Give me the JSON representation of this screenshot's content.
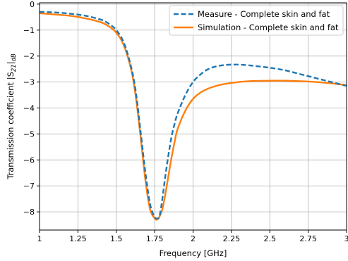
{
  "chart_data": {
    "type": "line",
    "title": "",
    "xlabel": "Frequency [GHz]",
    "ylabel": "Transmission coefficient |S",
    "ylabel_sub": "21",
    "ylabel_tail": "|",
    "ylabel_sub2": "dB",
    "xlim": [
      1,
      3
    ],
    "ylim": [
      -8.7,
      0.05
    ],
    "xticks": [
      1,
      1.25,
      1.5,
      1.75,
      2,
      2.25,
      2.5,
      2.75,
      3
    ],
    "xtick_labels": [
      "1",
      "1.25",
      "1.5",
      "1.75",
      "2",
      "2.25",
      "2.5",
      "2.75",
      "3"
    ],
    "yticks": [
      0,
      -1,
      -2,
      -3,
      -4,
      -5,
      -6,
      -7,
      -8
    ],
    "ytick_labels": [
      "0",
      "−1",
      "−2",
      "−3",
      "−4",
      "−5",
      "−6",
      "−7",
      "−8"
    ],
    "grid": true,
    "legend_position": "top-right",
    "series": [
      {
        "name": "Measure - Complete skin and fat",
        "color": "#1f77b4",
        "style": "dashed",
        "x": [
          1.0,
          1.1,
          1.2,
          1.3,
          1.4,
          1.45,
          1.5,
          1.55,
          1.6,
          1.63,
          1.66,
          1.69,
          1.72,
          1.75,
          1.77,
          1.78,
          1.79,
          1.8,
          1.82,
          1.84,
          1.86,
          1.88,
          1.9,
          1.95,
          2.0,
          2.05,
          2.1,
          2.15,
          2.2,
          2.25,
          2.3,
          2.35,
          2.4,
          2.5,
          2.6,
          2.7,
          2.8,
          2.9,
          3.0
        ],
        "y": [
          -0.3,
          -0.32,
          -0.37,
          -0.45,
          -0.6,
          -0.75,
          -1.0,
          -1.5,
          -2.5,
          -3.5,
          -5.0,
          -6.5,
          -7.7,
          -8.2,
          -8.25,
          -8.2,
          -7.9,
          -7.5,
          -6.6,
          -5.8,
          -5.1,
          -4.6,
          -4.2,
          -3.5,
          -3.0,
          -2.7,
          -2.5,
          -2.4,
          -2.35,
          -2.33,
          -2.33,
          -2.35,
          -2.38,
          -2.45,
          -2.55,
          -2.7,
          -2.85,
          -3.0,
          -3.15
        ]
      },
      {
        "name": "Simulation - Complete skin and fat",
        "color": "#ff7f0e",
        "style": "solid",
        "x": [
          1.0,
          1.1,
          1.2,
          1.3,
          1.4,
          1.45,
          1.5,
          1.55,
          1.6,
          1.63,
          1.66,
          1.69,
          1.72,
          1.75,
          1.76,
          1.77,
          1.78,
          1.8,
          1.82,
          1.84,
          1.86,
          1.88,
          1.9,
          1.95,
          2.0,
          2.05,
          2.1,
          2.15,
          2.2,
          2.3,
          2.4,
          2.5,
          2.6,
          2.7,
          2.8,
          2.9,
          3.0
        ],
        "y": [
          -0.35,
          -0.4,
          -0.45,
          -0.55,
          -0.7,
          -0.85,
          -1.1,
          -1.6,
          -2.6,
          -3.7,
          -5.2,
          -6.8,
          -7.9,
          -8.25,
          -8.3,
          -8.28,
          -8.2,
          -7.9,
          -7.3,
          -6.6,
          -5.9,
          -5.3,
          -4.8,
          -4.1,
          -3.65,
          -3.4,
          -3.25,
          -3.15,
          -3.08,
          -3.0,
          -2.96,
          -2.95,
          -2.95,
          -2.97,
          -3.0,
          -3.05,
          -3.12
        ]
      }
    ]
  }
}
